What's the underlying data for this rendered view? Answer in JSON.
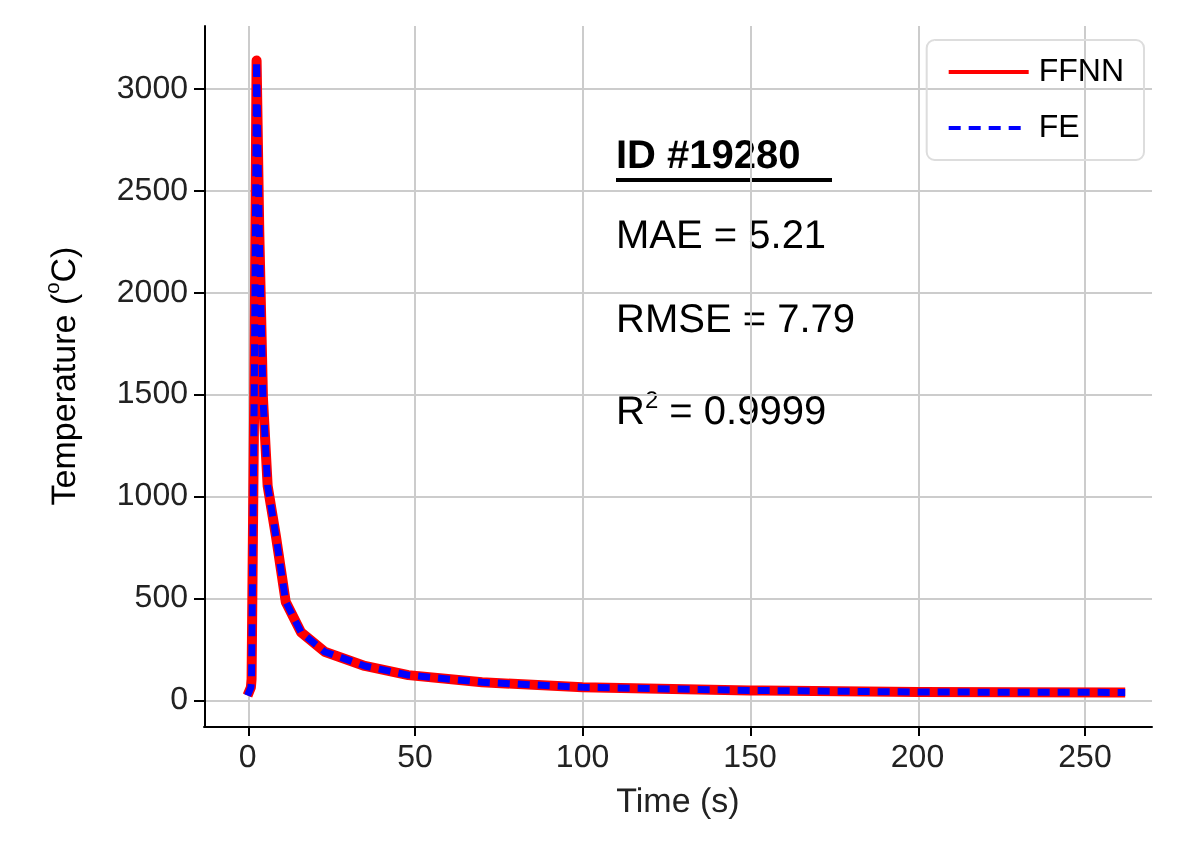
{
  "chart_data": {
    "type": "line",
    "xlabel": "Time (s)",
    "ylabel": "Temperature ($^{o}$C)",
    "annotations": [
      "ID #19280",
      "MAE = 5.21",
      "RMSE = 7.79",
      "R$^{2}$ = 0.9999"
    ],
    "x": [
      0,
      1,
      1.2,
      2,
      2.7,
      3.5,
      4.6,
      6,
      8.5,
      11.4,
      16,
      23,
      35,
      48,
      70,
      100,
      150,
      200,
      262
    ],
    "series": [
      {
        "name": "FFNN",
        "color": "#ff0000",
        "line_style": "solid",
        "values": [
          20,
          60,
          100,
          1500,
          3140,
          2300,
          1480,
          1050,
          800,
          480,
          330,
          235,
          165,
          120,
          85,
          60,
          45,
          37,
          35
        ]
      },
      {
        "name": "FE",
        "color": "#0000ff",
        "line_style": "dashed",
        "values": [
          20,
          60,
          100,
          1500,
          3140,
          2300,
          1480,
          1050,
          800,
          480,
          330,
          235,
          165,
          120,
          85,
          60,
          45,
          37,
          35
        ]
      }
    ],
    "xlim": [
      -13,
      270
    ],
    "ylim": [
      -130,
      3310
    ],
    "xticks": [
      0,
      50,
      100,
      150,
      200,
      250
    ],
    "yticks": [
      0,
      500,
      1000,
      1500,
      2000,
      2500,
      3000
    ],
    "grid": true,
    "legend": "top right",
    "marker": "none"
  }
}
